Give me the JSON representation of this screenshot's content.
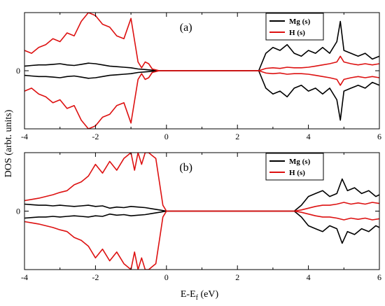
{
  "figure": {
    "ylabel": "DOS (arbt. units)",
    "xlabel_main": "E-E",
    "xlabel_sub": "f",
    "xlabel_unit": " (eV)"
  },
  "chart_data": [
    {
      "type": "line",
      "panel_label": "(a)",
      "xlim": [
        -4,
        6
      ],
      "ylim": [
        -1.0,
        1.0
      ],
      "x_ticks": [
        -4,
        -2,
        0,
        2,
        4,
        6
      ],
      "x_tick_labels": [
        "-4",
        "-2",
        "0",
        "2",
        "4",
        "6"
      ],
      "y_ticks": [
        0
      ],
      "y_tick_labels": [
        "0"
      ],
      "legend": {
        "position": "top-right",
        "entries": [
          "Mg (s)",
          "H (s)"
        ]
      },
      "series": [
        {
          "name": "Mg (s)",
          "color": "#000000",
          "x": [
            -4.0,
            -3.8,
            -3.6,
            -3.4,
            -3.2,
            -3.0,
            -2.8,
            -2.6,
            -2.4,
            -2.2,
            -2.0,
            -1.8,
            -1.6,
            -1.4,
            -1.2,
            -1.0,
            -0.8,
            -0.6,
            -0.4,
            -0.2,
            0.0,
            2.6,
            2.8,
            3.0,
            3.2,
            3.4,
            3.6,
            3.8,
            4.0,
            4.2,
            4.4,
            4.6,
            4.8,
            4.9,
            5.0,
            5.2,
            5.4,
            5.6,
            5.8,
            6.0
          ],
          "upper": [
            0.08,
            0.09,
            0.1,
            0.1,
            0.11,
            0.12,
            0.1,
            0.09,
            0.11,
            0.13,
            0.12,
            0.1,
            0.08,
            0.07,
            0.06,
            0.05,
            0.03,
            0.02,
            0.01,
            0.0,
            0.0,
            0.0,
            0.3,
            0.4,
            0.35,
            0.45,
            0.3,
            0.25,
            0.35,
            0.3,
            0.4,
            0.3,
            0.5,
            0.85,
            0.35,
            0.3,
            0.25,
            0.3,
            0.2,
            0.25
          ],
          "lower": [
            -0.08,
            -0.09,
            -0.1,
            -0.1,
            -0.11,
            -0.12,
            -0.1,
            -0.09,
            -0.11,
            -0.13,
            -0.12,
            -0.1,
            -0.08,
            -0.07,
            -0.06,
            -0.05,
            -0.03,
            -0.02,
            -0.01,
            0.0,
            0.0,
            0.0,
            -0.3,
            -0.4,
            -0.35,
            -0.45,
            -0.3,
            -0.25,
            -0.35,
            -0.3,
            -0.4,
            -0.3,
            -0.5,
            -0.85,
            -0.35,
            -0.3,
            -0.25,
            -0.3,
            -0.2,
            -0.25
          ]
        },
        {
          "name": "H (s)",
          "color": "#dd1111",
          "x": [
            -4.0,
            -3.8,
            -3.6,
            -3.4,
            -3.2,
            -3.0,
            -2.8,
            -2.6,
            -2.4,
            -2.2,
            -2.0,
            -1.8,
            -1.6,
            -1.4,
            -1.2,
            -1.0,
            -0.8,
            -0.7,
            -0.6,
            -0.5,
            -0.4,
            -0.2,
            0.0,
            2.6,
            2.8,
            3.0,
            3.2,
            3.4,
            3.6,
            3.8,
            4.0,
            4.2,
            4.4,
            4.6,
            4.8,
            4.9,
            5.0,
            5.2,
            5.4,
            5.6,
            5.8,
            6.0
          ],
          "upper": [
            0.35,
            0.3,
            0.4,
            0.45,
            0.55,
            0.5,
            0.65,
            0.6,
            0.85,
            1.0,
            0.95,
            0.8,
            0.75,
            0.6,
            0.55,
            0.9,
            0.15,
            0.05,
            0.15,
            0.12,
            0.03,
            0.0,
            0.0,
            0.0,
            0.04,
            0.05,
            0.04,
            0.06,
            0.05,
            0.05,
            0.06,
            0.08,
            0.1,
            0.12,
            0.15,
            0.25,
            0.15,
            0.12,
            0.1,
            0.12,
            0.1,
            0.12
          ],
          "lower": [
            -0.35,
            -0.3,
            -0.4,
            -0.45,
            -0.55,
            -0.5,
            -0.65,
            -0.6,
            -0.85,
            -1.0,
            -0.95,
            -0.8,
            -0.75,
            -0.6,
            -0.55,
            -0.9,
            -0.15,
            -0.05,
            -0.15,
            -0.12,
            -0.03,
            0.0,
            0.0,
            0.0,
            -0.04,
            -0.05,
            -0.04,
            -0.06,
            -0.05,
            -0.05,
            -0.06,
            -0.08,
            -0.1,
            -0.12,
            -0.15,
            -0.25,
            -0.15,
            -0.12,
            -0.1,
            -0.12,
            -0.1,
            -0.12
          ]
        }
      ]
    },
    {
      "type": "line",
      "panel_label": "(b)",
      "xlim": [
        -4,
        6
      ],
      "ylim": [
        -1.0,
        1.0
      ],
      "x_ticks": [
        -4,
        -2,
        0,
        2,
        4,
        6
      ],
      "x_tick_labels": [
        "-4",
        "-2",
        "0",
        "2",
        "4",
        "6"
      ],
      "y_ticks": [
        0
      ],
      "y_tick_labels": [
        "0"
      ],
      "legend": {
        "position": "top-right",
        "entries": [
          "Mg (s)",
          "H (s)"
        ]
      },
      "series": [
        {
          "name": "Mg (s)",
          "color": "#000000",
          "x": [
            -4.0,
            -3.8,
            -3.6,
            -3.4,
            -3.2,
            -3.0,
            -2.8,
            -2.6,
            -2.4,
            -2.2,
            -2.0,
            -1.8,
            -1.6,
            -1.4,
            -1.2,
            -1.0,
            -0.8,
            -0.6,
            -0.4,
            -0.2,
            -0.1,
            0.0,
            3.6,
            3.8,
            4.0,
            4.2,
            4.4,
            4.6,
            4.8,
            4.95,
            5.1,
            5.3,
            5.5,
            5.7,
            5.9,
            6.0
          ],
          "upper": [
            0.12,
            0.11,
            0.1,
            0.1,
            0.09,
            0.1,
            0.09,
            0.08,
            0.09,
            0.1,
            0.08,
            0.09,
            0.05,
            0.07,
            0.06,
            0.08,
            0.07,
            0.06,
            0.04,
            0.02,
            0.01,
            0.0,
            0.0,
            0.1,
            0.25,
            0.3,
            0.35,
            0.25,
            0.3,
            0.55,
            0.35,
            0.4,
            0.3,
            0.35,
            0.25,
            0.28
          ],
          "lower": [
            -0.12,
            -0.11,
            -0.1,
            -0.1,
            -0.09,
            -0.1,
            -0.09,
            -0.08,
            -0.09,
            -0.1,
            -0.08,
            -0.09,
            -0.05,
            -0.07,
            -0.06,
            -0.08,
            -0.07,
            -0.06,
            -0.04,
            -0.02,
            -0.01,
            0.0,
            0.0,
            -0.1,
            -0.25,
            -0.3,
            -0.35,
            -0.25,
            -0.3,
            -0.55,
            -0.35,
            -0.4,
            -0.3,
            -0.35,
            -0.25,
            -0.28
          ]
        },
        {
          "name": "H (s)",
          "color": "#dd1111",
          "x": [
            -4.0,
            -3.8,
            -3.6,
            -3.4,
            -3.2,
            -3.0,
            -2.8,
            -2.6,
            -2.4,
            -2.2,
            -2.0,
            -1.8,
            -1.6,
            -1.4,
            -1.2,
            -1.0,
            -0.9,
            -0.8,
            -0.7,
            -0.6,
            -0.5,
            -0.4,
            -0.3,
            -0.2,
            -0.1,
            0.0,
            3.6,
            3.8,
            4.0,
            4.2,
            4.4,
            4.6,
            4.8,
            5.0,
            5.2,
            5.4,
            5.6,
            5.8,
            6.0
          ],
          "upper": [
            0.18,
            0.2,
            0.22,
            0.25,
            0.28,
            0.32,
            0.35,
            0.45,
            0.5,
            0.6,
            0.8,
            0.65,
            0.85,
            0.7,
            0.9,
            1.0,
            0.7,
            1.0,
            0.8,
            1.0,
            1.0,
            0.95,
            0.9,
            0.5,
            0.1,
            0.0,
            0.0,
            0.02,
            0.05,
            0.08,
            0.1,
            0.1,
            0.12,
            0.15,
            0.12,
            0.14,
            0.12,
            0.15,
            0.13
          ],
          "lower": [
            -0.18,
            -0.2,
            -0.22,
            -0.25,
            -0.28,
            -0.32,
            -0.35,
            -0.45,
            -0.5,
            -0.6,
            -0.8,
            -0.65,
            -0.85,
            -0.7,
            -0.9,
            -1.0,
            -0.7,
            -1.0,
            -0.8,
            -1.0,
            -1.0,
            -0.95,
            -0.9,
            -0.5,
            -0.1,
            0.0,
            0.0,
            -0.02,
            -0.05,
            -0.08,
            -0.1,
            -0.1,
            -0.12,
            -0.15,
            -0.12,
            -0.14,
            -0.12,
            -0.15,
            -0.13
          ]
        }
      ]
    }
  ]
}
